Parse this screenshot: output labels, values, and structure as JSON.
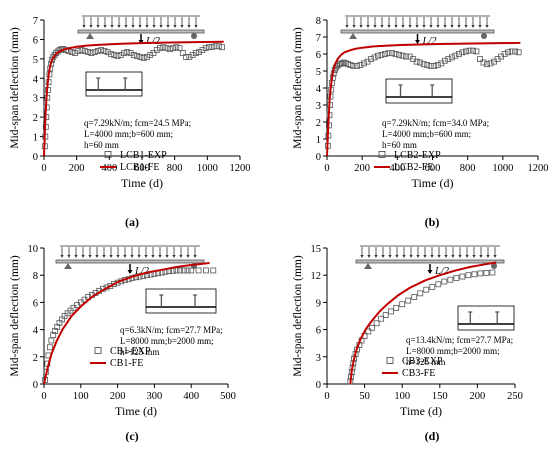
{
  "colors": {
    "exp": "#555555",
    "fe": "#c00000",
    "axis": "#000000"
  },
  "load_label": "L/2",
  "chart_data": [
    {
      "type": "scatter",
      "panel_label": "(a)",
      "xlabel": "Time (d)",
      "ylabel": "Mid-span deflection (mm)",
      "xlim": [
        0,
        1200
      ],
      "ylim": [
        0,
        7
      ],
      "xticks": [
        0,
        200,
        400,
        600,
        800,
        1000,
        1200
      ],
      "yticks": [
        0,
        1,
        2,
        3,
        4,
        5,
        6,
        7
      ],
      "params": [
        "q=7.29kN/m; fcm=24.5 MPa;",
        "L=4000 mm;b=600 mm;",
        "h=60 mm"
      ],
      "legend_position": "bottom-right",
      "series": [
        {
          "name": "LCB1-EXP",
          "kind": "markers",
          "x": [
            5,
            8,
            11,
            14,
            17,
            20,
            24,
            28,
            33,
            38,
            44,
            50,
            57,
            65,
            74,
            84,
            95,
            107,
            120,
            134,
            150,
            170,
            190,
            210,
            230,
            250,
            270,
            290,
            310,
            330,
            350,
            370,
            390,
            410,
            430,
            450,
            470,
            490,
            510,
            530,
            550,
            570,
            590,
            610,
            630,
            650,
            670,
            690,
            710,
            730,
            750,
            770,
            790,
            810,
            830,
            850,
            870,
            890,
            910,
            930,
            950,
            970,
            990,
            1010,
            1030,
            1050,
            1070,
            1090
          ],
          "y": [
            0.5,
            1.0,
            1.5,
            2.0,
            2.5,
            3.0,
            3.4,
            3.8,
            4.2,
            4.5,
            4.75,
            4.95,
            5.1,
            5.2,
            5.3,
            5.38,
            5.45,
            5.5,
            5.5,
            5.45,
            5.4,
            5.35,
            5.3,
            5.4,
            5.45,
            5.4,
            5.35,
            5.3,
            5.35,
            5.4,
            5.45,
            5.4,
            5.35,
            5.25,
            5.2,
            5.15,
            5.2,
            5.3,
            5.35,
            5.3,
            5.2,
            5.15,
            5.1,
            5.05,
            5.1,
            5.2,
            5.3,
            5.45,
            5.55,
            5.6,
            5.55,
            5.5,
            5.55,
            5.6,
            5.55,
            5.3,
            5.1,
            5.1,
            5.2,
            5.3,
            5.35,
            5.45,
            5.55,
            5.6,
            5.62,
            5.65,
            5.65,
            5.6
          ]
        },
        {
          "name": "LCB1-FE",
          "kind": "line",
          "x": [
            0,
            5,
            10,
            15,
            20,
            30,
            40,
            50,
            60,
            80,
            100,
            130,
            160,
            200,
            260,
            330,
            420,
            520,
            640,
            780,
            930,
            1100
          ],
          "y": [
            0,
            1.2,
            2.2,
            3.0,
            3.55,
            4.3,
            4.7,
            4.95,
            5.1,
            5.3,
            5.4,
            5.5,
            5.56,
            5.62,
            5.68,
            5.72,
            5.76,
            5.79,
            5.82,
            5.84,
            5.86,
            5.88
          ]
        }
      ]
    },
    {
      "type": "scatter",
      "panel_label": "(b)",
      "xlabel": "Time (d)",
      "ylabel": "Mid-span deflection (mm)",
      "xlim": [
        0,
        1200
      ],
      "ylim": [
        0,
        8
      ],
      "xticks": [
        0,
        200,
        400,
        600,
        800,
        1000,
        1200
      ],
      "yticks": [
        0,
        1,
        2,
        3,
        4,
        5,
        6,
        7,
        8
      ],
      "params": [
        "q=7.29kN/m; fcm=34.0 MPa;",
        "L=4000 mm;b=600 mm;",
        "h=60 mm"
      ],
      "legend_position": "bottom-right",
      "series": [
        {
          "name": "LCB2-EXP",
          "kind": "markers",
          "x": [
            5,
            8,
            11,
            14,
            17,
            20,
            24,
            28,
            33,
            38,
            44,
            50,
            57,
            65,
            74,
            84,
            95,
            107,
            120,
            134,
            150,
            170,
            190,
            210,
            230,
            250,
            270,
            290,
            310,
            330,
            350,
            370,
            390,
            410,
            430,
            450,
            470,
            490,
            510,
            530,
            550,
            570,
            590,
            610,
            630,
            650,
            670,
            690,
            710,
            730,
            750,
            770,
            790,
            810,
            830,
            850,
            870,
            890,
            910,
            930,
            950,
            970,
            990,
            1010,
            1030,
            1050,
            1070,
            1090
          ],
          "y": [
            0.6,
            1.2,
            1.8,
            2.4,
            3.0,
            3.5,
            3.9,
            4.3,
            4.6,
            4.85,
            5.05,
            5.2,
            5.3,
            5.38,
            5.42,
            5.45,
            5.5,
            5.45,
            5.4,
            5.35,
            5.3,
            5.3,
            5.35,
            5.45,
            5.55,
            5.7,
            5.8,
            5.9,
            5.95,
            6.0,
            6.05,
            6.05,
            6.0,
            5.95,
            5.9,
            5.85,
            5.85,
            5.7,
            5.55,
            5.5,
            5.4,
            5.35,
            5.3,
            5.3,
            5.35,
            5.45,
            5.6,
            5.7,
            5.8,
            5.9,
            6.0,
            6.1,
            6.15,
            6.2,
            6.2,
            6.15,
            5.7,
            5.5,
            5.4,
            5.45,
            5.55,
            5.7,
            5.85,
            6.0,
            6.1,
            6.15,
            6.15,
            6.1
          ]
        },
        {
          "name": "LCB2-FE",
          "kind": "line",
          "x": [
            0,
            5,
            10,
            15,
            20,
            30,
            40,
            50,
            60,
            80,
            100,
            130,
            160,
            200,
            260,
            330,
            420,
            520,
            640,
            780,
            930,
            1100
          ],
          "y": [
            0,
            1.3,
            2.4,
            3.3,
            3.9,
            4.7,
            5.2,
            5.5,
            5.7,
            5.95,
            6.1,
            6.22,
            6.3,
            6.37,
            6.44,
            6.49,
            6.53,
            6.56,
            6.59,
            6.61,
            6.63,
            6.65
          ]
        }
      ]
    },
    {
      "type": "scatter",
      "panel_label": "(c)",
      "xlabel": "Time (d)",
      "ylabel": "Mid-span deflection (mm)",
      "xlim": [
        0,
        500
      ],
      "ylim": [
        0,
        10
      ],
      "xticks": [
        0,
        100,
        200,
        300,
        400,
        500
      ],
      "yticks": [
        0,
        2,
        4,
        6,
        8,
        10
      ],
      "params": [
        "q=6.3kN/m; fcm=27.7 MPa;",
        "L=8000 mm;b=2000 mm;",
        "h=125 mm"
      ],
      "legend_position": "bottom-right",
      "series": [
        {
          "name": "CB1-EXP",
          "kind": "markers",
          "x": [
            3,
            6,
            9,
            12,
            16,
            20,
            25,
            30,
            36,
            42,
            49,
            56,
            64,
            72,
            80,
            90,
            100,
            110,
            120,
            130,
            140,
            150,
            160,
            170,
            180,
            190,
            200,
            210,
            220,
            230,
            240,
            250,
            260,
            270,
            280,
            290,
            300,
            310,
            320,
            330,
            340,
            350,
            360,
            370,
            380,
            390,
            400,
            420,
            440,
            460
          ],
          "y": [
            0.3,
            0.9,
            1.5,
            2.1,
            2.7,
            3.2,
            3.6,
            3.9,
            4.2,
            4.5,
            4.75,
            5.0,
            5.2,
            5.4,
            5.6,
            5.8,
            6.0,
            6.2,
            6.4,
            6.55,
            6.7,
            6.85,
            7.0,
            7.1,
            7.2,
            7.35,
            7.45,
            7.55,
            7.65,
            7.7,
            7.8,
            7.85,
            7.9,
            7.95,
            8.0,
            8.05,
            8.1,
            8.15,
            8.2,
            8.25,
            8.3,
            8.32,
            8.35,
            8.35,
            8.35,
            8.35,
            8.35,
            8.35,
            8.35,
            8.35
          ]
        },
        {
          "name": "CB1-FE",
          "kind": "line",
          "x": [
            0,
            10,
            20,
            35,
            50,
            75,
            100,
            130,
            160,
            200,
            240,
            280,
            320,
            360,
            400,
            450
          ],
          "y": [
            0,
            1.2,
            2.2,
            3.2,
            4.0,
            5.0,
            5.7,
            6.4,
            6.9,
            7.5,
            7.9,
            8.2,
            8.4,
            8.6,
            8.75,
            8.9
          ]
        }
      ]
    },
    {
      "type": "scatter",
      "panel_label": "(d)",
      "xlabel": "Time (d)",
      "ylabel": "Mid-span deflection (mm)",
      "xlim": [
        0,
        250
      ],
      "ylim": [
        0,
        15
      ],
      "xticks": [
        0,
        50,
        100,
        150,
        200,
        250
      ],
      "yticks": [
        0,
        3,
        6,
        9,
        12,
        15
      ],
      "params": [
        "q=13.4kN/m; fcm=27.7 MPa;",
        "L=8000 mm;b=2000 mm;",
        "h=125 mm"
      ],
      "legend_position": "bottom-right",
      "series": [
        {
          "name": "CB3-EXP",
          "kind": "markers",
          "x": [
            31,
            32,
            33,
            34,
            35,
            36,
            38,
            40,
            43,
            46,
            50,
            55,
            60,
            66,
            72,
            78,
            85,
            92,
            100,
            108,
            116,
            124,
            132,
            140,
            148,
            156,
            164,
            172,
            180,
            188,
            196,
            204,
            212,
            220
          ],
          "y": [
            0.3,
            0.8,
            1.3,
            1.8,
            2.3,
            2.8,
            3.3,
            3.8,
            4.3,
            4.8,
            5.3,
            5.8,
            6.2,
            6.7,
            7.2,
            7.6,
            8.0,
            8.4,
            8.8,
            9.2,
            9.6,
            10.0,
            10.4,
            10.7,
            11.0,
            11.3,
            11.5,
            11.7,
            11.85,
            12.0,
            12.1,
            12.2,
            12.25,
            12.3
          ]
        },
        {
          "name": "CB3-FE",
          "kind": "line",
          "x": [
            31,
            33,
            36,
            40,
            45,
            52,
            60,
            70,
            80,
            95,
            110,
            130,
            150,
            170,
            190,
            210,
            225
          ],
          "y": [
            0,
            1.5,
            2.8,
            4.0,
            5.0,
            6.1,
            7.0,
            8.0,
            8.8,
            9.8,
            10.6,
            11.4,
            12.0,
            12.5,
            12.9,
            13.2,
            13.4
          ]
        }
      ]
    }
  ]
}
